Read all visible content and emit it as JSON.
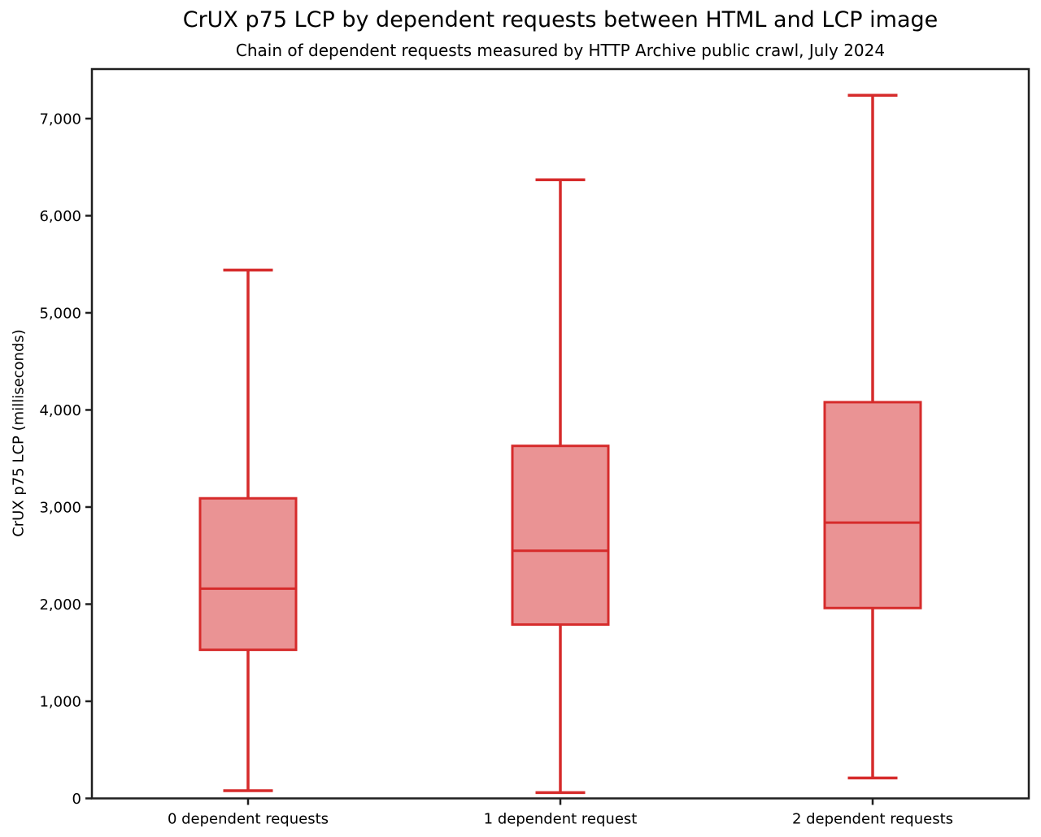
{
  "chart_data": {
    "type": "boxplot",
    "title": "CrUX p75 LCP by dependent requests between HTML and LCP image",
    "subtitle": "Chain of dependent requests measured by HTTP Archive public crawl, July 2024",
    "ylabel": "CrUX p75 LCP (milliseconds)",
    "xlabel": "",
    "categories": [
      "0 dependent requests",
      "1 dependent request",
      "2 dependent requests"
    ],
    "series": [
      {
        "name": "0 dependent requests",
        "whisker_low": 80,
        "q1": 1530,
        "median": 2160,
        "q3": 3090,
        "whisker_high": 5440
      },
      {
        "name": "1 dependent request",
        "whisker_low": 60,
        "q1": 1790,
        "median": 2550,
        "q3": 3630,
        "whisker_high": 6370
      },
      {
        "name": "2 dependent requests",
        "whisker_low": 210,
        "q1": 1960,
        "median": 2840,
        "q3": 4080,
        "whisker_high": 7240
      }
    ],
    "ylim": [
      0,
      7510
    ],
    "yticks": [
      0,
      1000,
      2000,
      3000,
      4000,
      5000,
      6000,
      7000
    ],
    "ytick_labels": [
      "0",
      "1,000",
      "2,000",
      "3,000",
      "4,000",
      "5,000",
      "6,000",
      "7,000"
    ],
    "grid": false,
    "legend": null,
    "colors": {
      "box_edge": "#d62b2b",
      "box_fill": "#ea9394",
      "spine": "#1f1f1f",
      "text": "#000000",
      "background": "#ffffff"
    }
  }
}
